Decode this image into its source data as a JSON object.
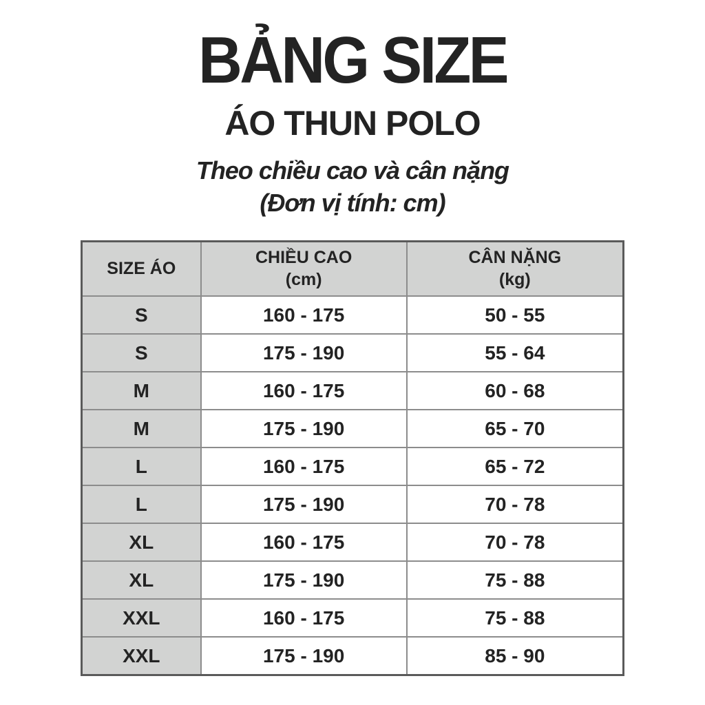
{
  "page": {
    "title": "BẢNG SIZE",
    "subtitle": "ÁO THUN POLO",
    "description_line1": "Theo chiều cao và cân nặng",
    "description_line2": "(Đơn vị tính: cm)"
  },
  "table": {
    "columns": [
      {
        "label": "SIZE ÁO",
        "unit": ""
      },
      {
        "label": "CHIỀU CAO",
        "unit": "(cm)"
      },
      {
        "label": "CÂN NẶNG",
        "unit": "(kg)"
      }
    ],
    "rows": [
      {
        "size": "S",
        "height": "160 - 175",
        "weight": "50 - 55"
      },
      {
        "size": "S",
        "height": "175 - 190",
        "weight": "55 - 64"
      },
      {
        "size": "M",
        "height": "160 - 175",
        "weight": "60 - 68"
      },
      {
        "size": "M",
        "height": "175 - 190",
        "weight": "65 - 70"
      },
      {
        "size": "L",
        "height": "160 - 175",
        "weight": "65 - 72"
      },
      {
        "size": "L",
        "height": "175 - 190",
        "weight": "70 - 78"
      },
      {
        "size": "XL",
        "height": "160 - 175",
        "weight": "70 - 78"
      },
      {
        "size": "XL",
        "height": "175 - 190",
        "weight": "75 - 88"
      },
      {
        "size": "XXL",
        "height": "160 - 175",
        "weight": "75 - 88"
      },
      {
        "size": "XXL",
        "height": "175 - 190",
        "weight": "85 - 90"
      }
    ]
  },
  "colors": {
    "header_bg": "#d2d3d2",
    "border_inner": "#8c8c8c",
    "border_outer": "#5a5a5a",
    "text": "#232323"
  }
}
